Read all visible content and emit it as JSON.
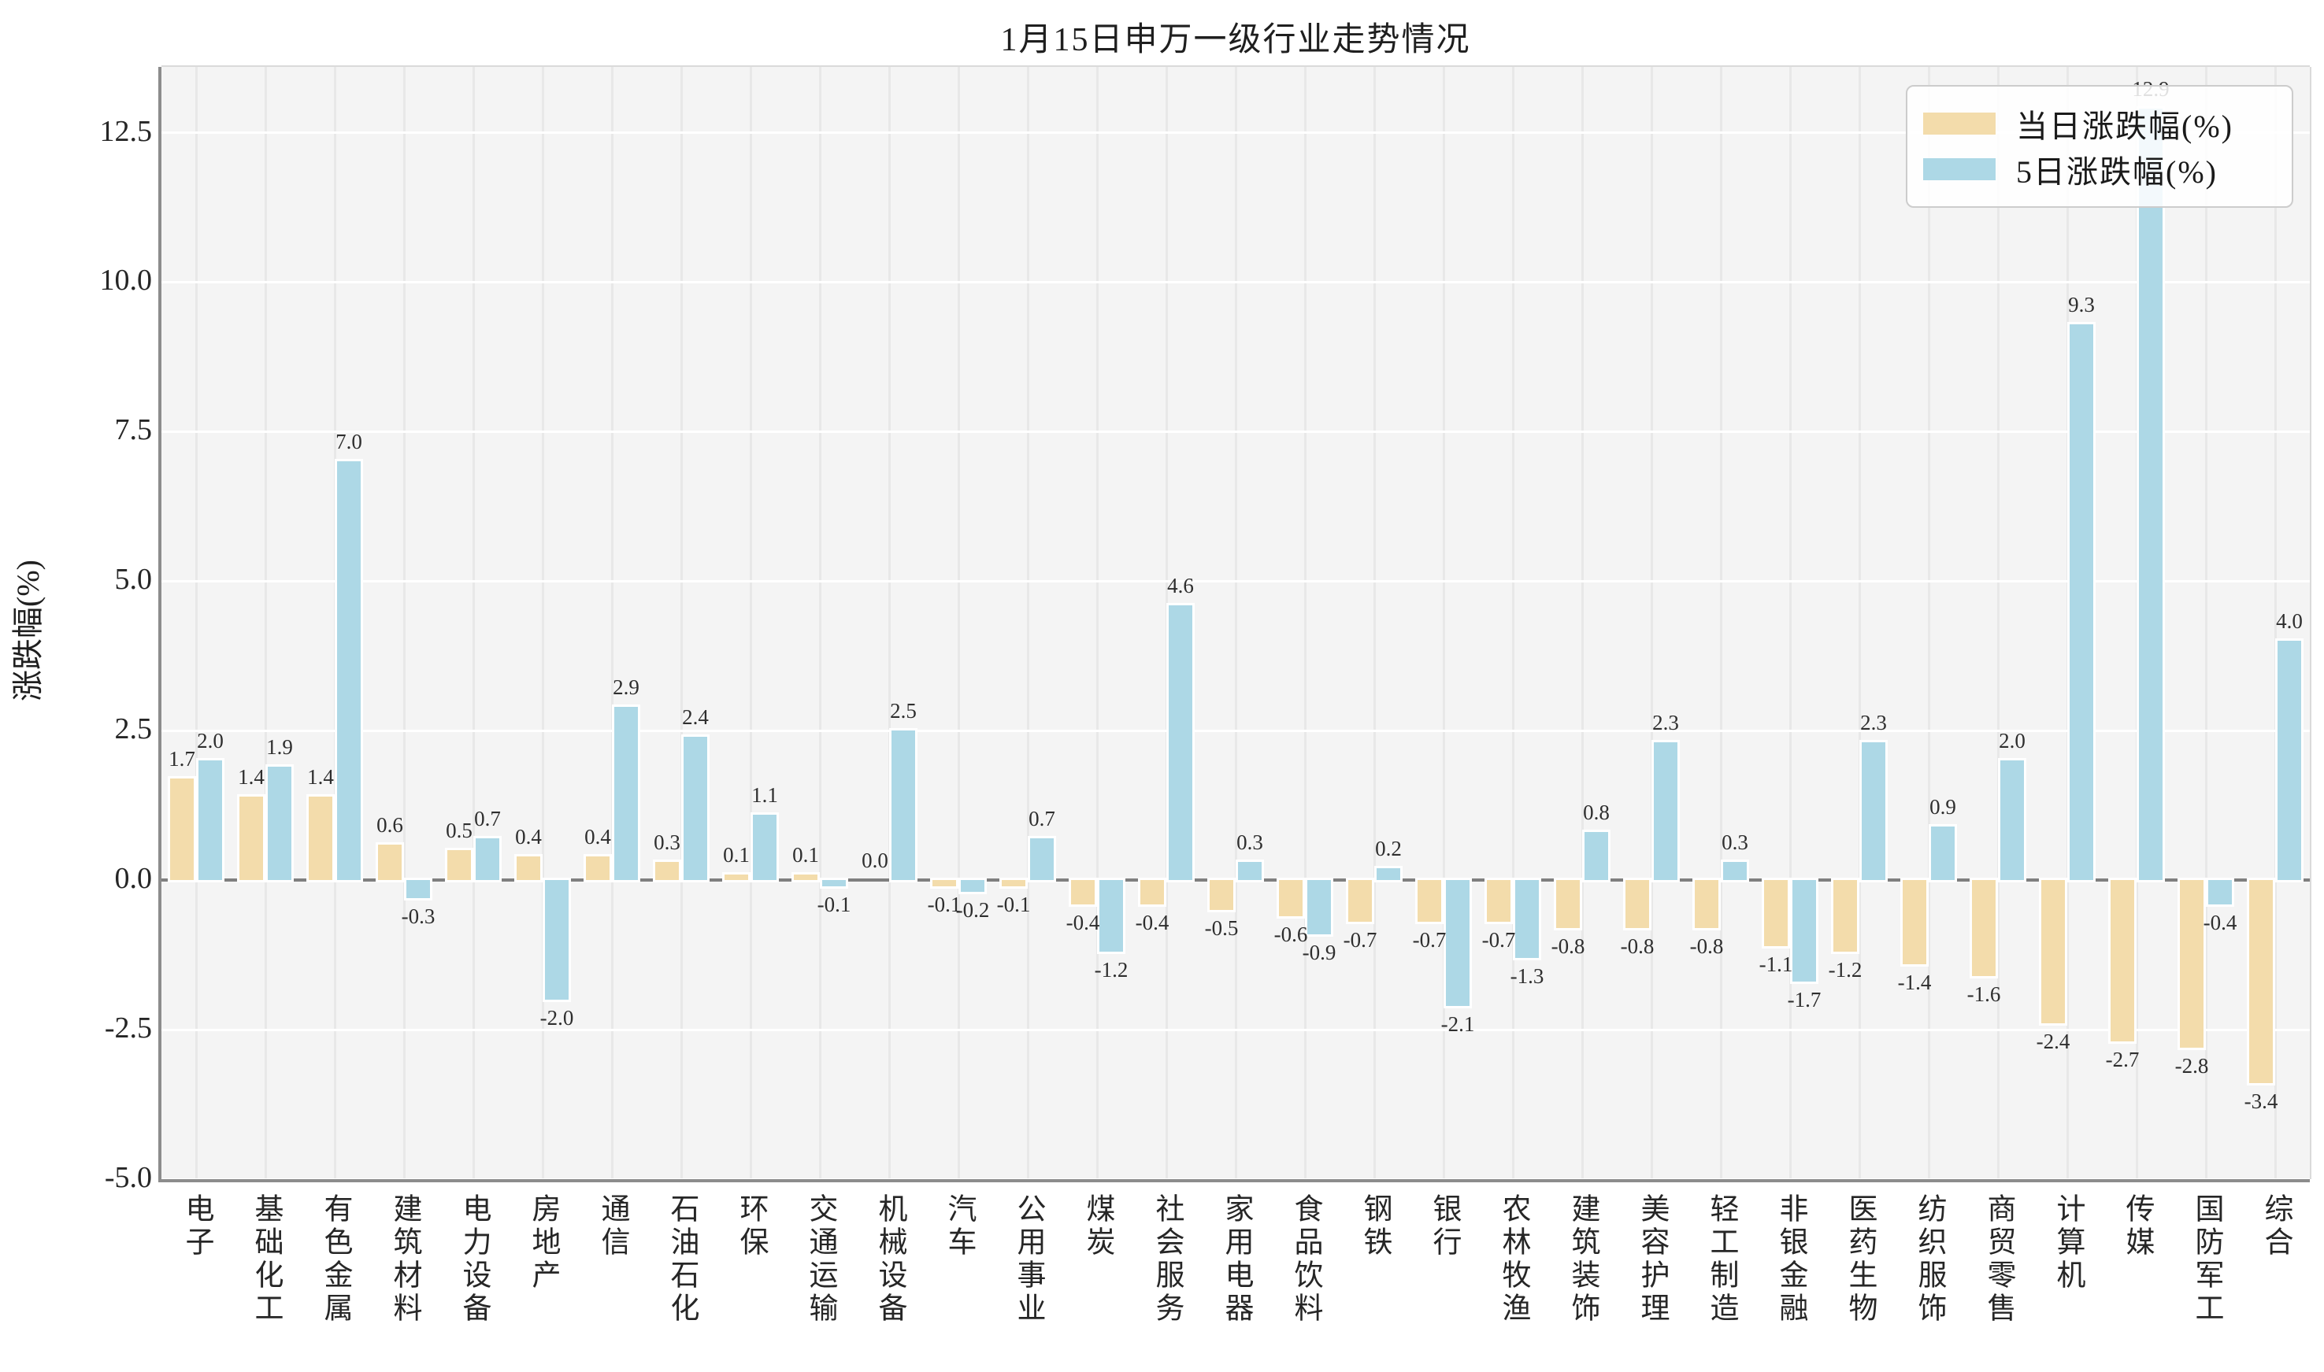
{
  "chart_data": {
    "type": "bar",
    "title": "1月15日申万一级行业走势情况",
    "ylabel": "涨跌幅(%)",
    "categories": [
      "电子",
      "基础化工",
      "有色金属",
      "建筑材料",
      "电力设备",
      "房地产",
      "通信",
      "石油石化",
      "环保",
      "交通运输",
      "机械设备",
      "汽车",
      "公用事业",
      "煤炭",
      "社会服务",
      "家用电器",
      "食品饮料",
      "钢铁",
      "银行",
      "农林牧渔",
      "建筑装饰",
      "美容护理",
      "轻工制造",
      "非银金融",
      "医药生物",
      "纺织服饰",
      "商贸零售",
      "计算机",
      "传媒",
      "国防军工",
      "综合"
    ],
    "series": [
      {
        "name": "当日涨跌幅(%)",
        "color": "#F3DCAB",
        "values": [
          1.7,
          1.4,
          1.4,
          0.6,
          0.5,
          0.4,
          0.4,
          0.3,
          0.1,
          0.1,
          0.0,
          -0.1,
          -0.1,
          -0.4,
          -0.4,
          -0.5,
          -0.6,
          -0.7,
          -0.7,
          -0.7,
          -0.8,
          -0.8,
          -0.8,
          -1.1,
          -1.2,
          -1.4,
          -1.6,
          -2.4,
          -2.7,
          -2.8,
          -3.4
        ]
      },
      {
        "name": "5日涨跌幅(%)",
        "color": "#ADD8E6",
        "values": [
          2.0,
          1.9,
          7.0,
          -0.3,
          0.7,
          -2.0,
          2.9,
          2.4,
          1.1,
          -0.1,
          2.5,
          -0.2,
          0.7,
          -1.2,
          4.6,
          0.3,
          -0.9,
          0.2,
          -2.1,
          -1.3,
          0.8,
          2.3,
          0.3,
          -1.7,
          2.3,
          0.9,
          2.0,
          9.3,
          12.9,
          -0.4,
          4.0
        ]
      }
    ],
    "yticks": [
      -5.0,
      -2.5,
      0.0,
      2.5,
      5.0,
      7.5,
      10.0,
      12.5
    ],
    "ylim": [
      -5.0,
      13.6
    ],
    "grid": true,
    "legend_position": "upper right",
    "colors": {
      "plot_bg": "#F4F4F4",
      "grid_h": "#FFFFFF",
      "grid_v": "#E8E8E8",
      "zero_line": "#7F7F7F",
      "spine_dark": "#8C8C8C",
      "spine_light": "#DADADA",
      "text": "#262626"
    }
  }
}
